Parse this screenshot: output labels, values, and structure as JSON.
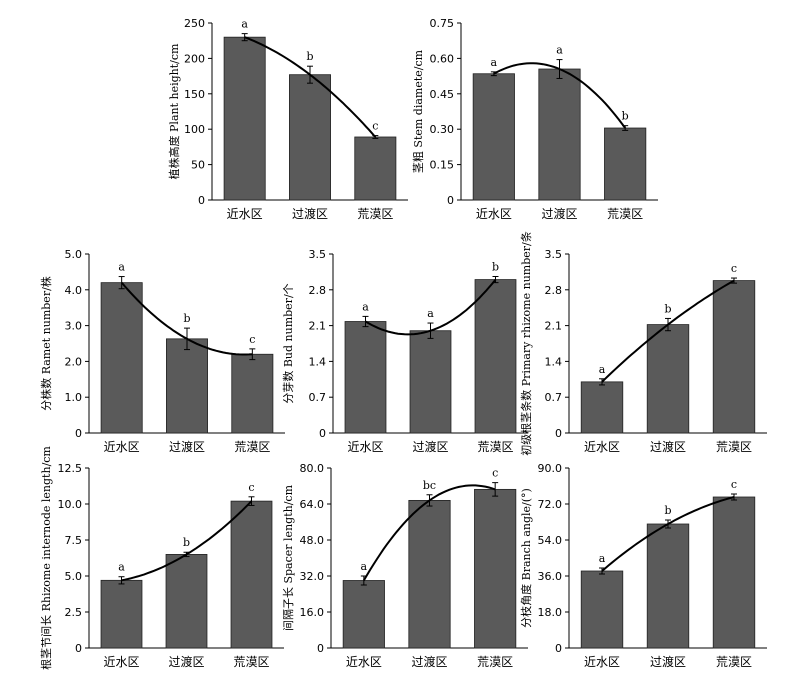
{
  "chart_data": [
    {
      "type": "bar",
      "categories": [
        "近水区",
        "过渡区",
        "荒漠区"
      ],
      "values": [
        230,
        177,
        89
      ],
      "errors": [
        5,
        12,
        2
      ],
      "significance": [
        "a",
        "b",
        "c"
      ],
      "ylabel": "植株高度 Plant height/cm",
      "ylim": [
        0,
        250
      ],
      "yticks": [
        "0",
        "50",
        "100",
        "150",
        "200",
        "250"
      ],
      "trendline": true
    },
    {
      "type": "bar",
      "categories": [
        "近水区",
        "过渡区",
        "荒漠区"
      ],
      "values": [
        0.535,
        0.555,
        0.305
      ],
      "errors": [
        0.008,
        0.04,
        0.01
      ],
      "significance": [
        "a",
        "a",
        "b"
      ],
      "ylabel": "茎粗 Stem diamete/cm",
      "ylim": [
        0,
        0.75
      ],
      "yticks": [
        "0",
        "0.15",
        "0.30",
        "0.45",
        "0.60",
        "0.75"
      ],
      "trendline": true
    },
    {
      "type": "bar",
      "categories": [
        "近水区",
        "过渡区",
        "荒漠区"
      ],
      "values": [
        4.2,
        2.63,
        2.2
      ],
      "errors": [
        0.17,
        0.3,
        0.15
      ],
      "significance": [
        "a",
        "b",
        "c"
      ],
      "ylabel": "分株数 Ramet number/株",
      "ylim": [
        0,
        5.0
      ],
      "yticks": [
        "0",
        "1.0",
        "2.0",
        "3.0",
        "4.0",
        "5.0"
      ],
      "trendline": true
    },
    {
      "type": "bar",
      "categories": [
        "近水区",
        "过渡区",
        "荒漠区"
      ],
      "values": [
        2.18,
        2.0,
        3.0
      ],
      "errors": [
        0.1,
        0.15,
        0.06
      ],
      "significance": [
        "a",
        "a",
        "b"
      ],
      "ylabel": "分芽数 Bud number/个",
      "ylim": [
        0,
        3.5
      ],
      "yticks": [
        "0",
        "0.7",
        "1.4",
        "2.1",
        "2.8",
        "3.5"
      ],
      "trendline": true
    },
    {
      "type": "bar",
      "categories": [
        "近水区",
        "过渡区",
        "荒漠区"
      ],
      "values": [
        1.0,
        2.12,
        2.98
      ],
      "errors": [
        0.06,
        0.12,
        0.05
      ],
      "significance": [
        "a",
        "b",
        "c"
      ],
      "ylabel": "初级根茎条数 Primary rhizome number/条",
      "ylim": [
        0,
        3.5
      ],
      "yticks": [
        "0",
        "0.7",
        "1.4",
        "2.1",
        "2.8",
        "3.5"
      ],
      "trendline": true
    },
    {
      "type": "bar",
      "categories": [
        "近水区",
        "过渡区",
        "荒漠区"
      ],
      "values": [
        4.7,
        6.5,
        10.2
      ],
      "errors": [
        0.25,
        0.15,
        0.3
      ],
      "significance": [
        "a",
        "b",
        "c"
      ],
      "ylabel": "根茎节间长 Rhizome internode length/cm",
      "ylim": [
        0,
        12.5
      ],
      "yticks": [
        "0",
        "2.5",
        "5.0",
        "7.5",
        "10.0",
        "12.5"
      ],
      "trendline": true
    },
    {
      "type": "bar",
      "categories": [
        "近水区",
        "过渡区",
        "荒漠区"
      ],
      "values": [
        30.0,
        65.6,
        70.5
      ],
      "errors": [
        2.0,
        2.5,
        3.0
      ],
      "significance": [
        "a",
        "bc",
        "c"
      ],
      "ylabel": "间隔子长 Spacer length/cm",
      "ylim": [
        0,
        80.0
      ],
      "yticks": [
        "0",
        "16.0",
        "32.0",
        "48.0",
        "64.0",
        "80.0"
      ],
      "trendline": true
    },
    {
      "type": "bar",
      "categories": [
        "近水区",
        "过渡区",
        "荒漠区"
      ],
      "values": [
        38.5,
        62.0,
        75.5
      ],
      "errors": [
        1.5,
        2.0,
        1.5
      ],
      "significance": [
        "a",
        "b",
        "c"
      ],
      "ylabel": "分枝角度 Branch angle/(°)",
      "ylim": [
        0,
        90.0
      ],
      "yticks": [
        "0",
        "18.0",
        "36.0",
        "54.0",
        "72.0",
        "90.0"
      ],
      "trendline": true
    }
  ]
}
